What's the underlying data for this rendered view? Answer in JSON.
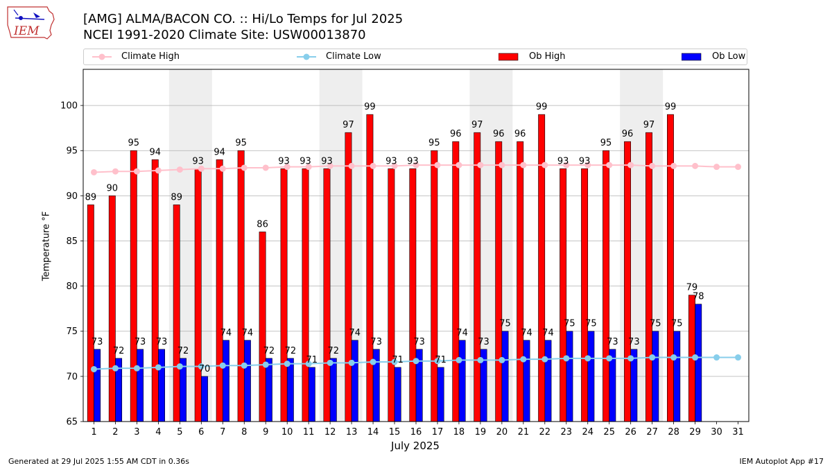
{
  "header": {
    "title_line1": "[AMG] ALMA/BACON CO. :: Hi/Lo Temps for Jul 2025",
    "title_line2": "NCEI 1991-2020 Climate Site: USW00013870",
    "logo_text": "IEM"
  },
  "footer": {
    "left": "Generated at 29 Jul 2025 1:55 AM CDT in 0.36s",
    "right": "IEM Autoplot App #17"
  },
  "colors": {
    "ob_high": "#ff0000",
    "ob_low": "#0000ff",
    "climate_high": "#ffc0cb",
    "climate_low": "#87ceeb",
    "weekend_shade": "#eeeeee",
    "grid": "#b0b0b0"
  },
  "chart_data": {
    "type": "bar",
    "xlabel": "July 2025",
    "ylabel": "Temperature $^\\circ$F",
    "ylim": [
      65,
      104
    ],
    "yticks": [
      65,
      70,
      75,
      80,
      85,
      90,
      95,
      100
    ],
    "grid": true,
    "legend_position": "top",
    "categories": [
      "1",
      "2",
      "3",
      "4",
      "5",
      "6",
      "7",
      "8",
      "9",
      "10",
      "11",
      "12",
      "13",
      "14",
      "15",
      "16",
      "17",
      "18",
      "19",
      "20",
      "21",
      "22",
      "23",
      "24",
      "25",
      "26",
      "27",
      "28",
      "29",
      "30",
      "31"
    ],
    "shaded_weekends": [
      [
        5,
        6
      ],
      [
        12,
        13
      ],
      [
        19,
        20
      ],
      [
        26,
        27
      ]
    ],
    "series": [
      {
        "name": "Ob High",
        "kind": "bar",
        "color": "#ff0000",
        "values": [
          89,
          90,
          95,
          94,
          89,
          93,
          94,
          95,
          86,
          93,
          93,
          93,
          97,
          99,
          93,
          93,
          95,
          96,
          97,
          96,
          96,
          99,
          93,
          93,
          95,
          96,
          97,
          99,
          79,
          null,
          null
        ]
      },
      {
        "name": "Ob Low",
        "kind": "bar",
        "color": "#0000ff",
        "values": [
          73,
          72,
          73,
          73,
          72,
          70,
          74,
          74,
          72,
          72,
          71,
          72,
          74,
          73,
          71,
          73,
          71,
          74,
          73,
          75,
          74,
          74,
          75,
          75,
          73,
          73,
          75,
          75,
          78,
          null,
          null
        ]
      },
      {
        "name": "Climate High",
        "kind": "line",
        "color": "#ffc0cb",
        "values": [
          92.6,
          92.7,
          92.7,
          92.8,
          92.9,
          93.0,
          93.0,
          93.1,
          93.1,
          93.2,
          93.2,
          93.3,
          93.3,
          93.3,
          93.3,
          93.4,
          93.4,
          93.4,
          93.4,
          93.4,
          93.4,
          93.4,
          93.4,
          93.4,
          93.4,
          93.4,
          93.3,
          93.3,
          93.3,
          93.2,
          93.2
        ]
      },
      {
        "name": "Climate Low",
        "kind": "line",
        "color": "#87ceeb",
        "values": [
          70.8,
          70.9,
          70.9,
          71.0,
          71.1,
          71.1,
          71.2,
          71.2,
          71.3,
          71.4,
          71.4,
          71.5,
          71.5,
          71.6,
          71.6,
          71.7,
          71.7,
          71.8,
          71.8,
          71.8,
          71.9,
          71.9,
          72.0,
          72.0,
          72.0,
          72.0,
          72.1,
          72.1,
          72.1,
          72.1,
          72.1
        ]
      }
    ]
  }
}
